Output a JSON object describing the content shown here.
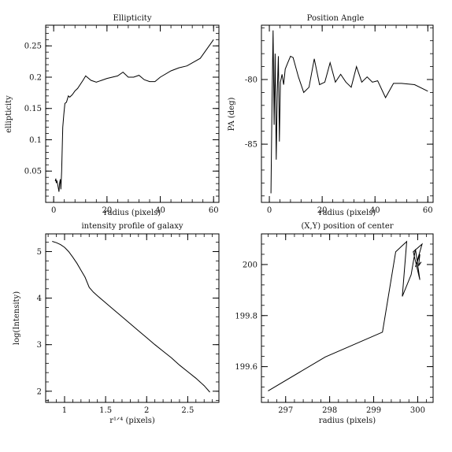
{
  "chart_data": [
    {
      "type": "line",
      "title": "Ellipticity",
      "xlabel": "radius (pixels)",
      "ylabel": "ellipticity",
      "xlim": [
        -3,
        62
      ],
      "ylim": [
        0.0,
        0.283
      ],
      "xticks": [
        0,
        20,
        40,
        60
      ],
      "yticks": [
        0.05,
        0.1,
        0.15,
        0.2,
        0.25
      ],
      "xtick_labels": [
        "0",
        "20",
        "40",
        "60"
      ],
      "ytick_labels": [
        "0.05",
        "0.1",
        "0.15",
        "0.2",
        "0.25"
      ],
      "x": [
        0.6,
        0.8,
        1.0,
        1.2,
        1.5,
        1.8,
        2.0,
        2.2,
        2.5,
        2.7,
        3.0,
        3.4,
        3.8,
        4.2,
        4.8,
        5.5,
        6.0,
        7.0,
        8.0,
        9.0,
        11.0,
        12.0,
        14.0,
        16.0,
        18.0,
        20.0,
        22.0,
        24.0,
        26.0,
        28.0,
        30.0,
        32.0,
        34.0,
        36.0,
        38.0,
        40.0,
        44.0,
        47.0,
        50.0,
        55.0,
        60.0
      ],
      "y": [
        0.034,
        0.038,
        0.031,
        0.035,
        0.029,
        0.022,
        0.017,
        0.03,
        0.037,
        0.021,
        0.05,
        0.12,
        0.14,
        0.158,
        0.16,
        0.17,
        0.168,
        0.172,
        0.178,
        0.182,
        0.195,
        0.202,
        0.195,
        0.192,
        0.195,
        0.198,
        0.2,
        0.202,
        0.208,
        0.2,
        0.2,
        0.203,
        0.196,
        0.193,
        0.193,
        0.2,
        0.21,
        0.215,
        0.218,
        0.23,
        0.26
      ]
    },
    {
      "type": "line",
      "title": "Position Angle",
      "xlabel": "radius (pixels)",
      "ylabel": "PA (deg)",
      "xlim": [
        -3,
        62
      ],
      "ylim": [
        -89.5,
        -75.8
      ],
      "xticks": [
        0,
        20,
        40,
        60
      ],
      "yticks": [
        -80,
        -85
      ],
      "xtick_labels": [
        "0",
        "20",
        "40",
        "60"
      ],
      "ytick_labels": [
        "-80",
        "-85"
      ],
      "x": [
        0.6,
        1.0,
        1.4,
        1.8,
        2.2,
        2.6,
        3.0,
        3.4,
        3.8,
        4.2,
        4.8,
        5.4,
        6.0,
        7.0,
        8.0,
        9.0,
        11.0,
        13.0,
        15.0,
        17.0,
        19.0,
        21.0,
        23.0,
        25.0,
        27.0,
        29.0,
        31.0,
        33.0,
        35.0,
        37.0,
        39.0,
        41.0,
        44.0,
        47.0,
        50.0,
        55.0,
        60.0
      ],
      "y": [
        -88.8,
        -82.0,
        -76.2,
        -83.5,
        -78.0,
        -86.2,
        -81.0,
        -78.2,
        -84.8,
        -80.2,
        -79.6,
        -80.4,
        -79.2,
        -78.7,
        -78.2,
        -78.3,
        -79.8,
        -81.0,
        -80.6,
        -78.4,
        -80.4,
        -80.2,
        -78.7,
        -80.2,
        -79.6,
        -80.2,
        -80.6,
        -79.0,
        -80.2,
        -79.8,
        -80.2,
        -80.1,
        -81.4,
        -80.3,
        -80.3,
        -80.4,
        -80.9
      ]
    },
    {
      "type": "line",
      "title": "intensity profile of galaxy",
      "xlabel": "r¹ᐟ⁴ (pixels)",
      "ylabel": "log(Intensity)",
      "xlim": [
        0.77,
        2.88
      ],
      "ylim": [
        1.76,
        5.38
      ],
      "xticks": [
        1.0,
        1.5,
        2.0,
        2.5
      ],
      "yticks": [
        2,
        3,
        4,
        5
      ],
      "xtick_labels": [
        "1",
        "1.5",
        "2",
        "2.5"
      ],
      "ytick_labels": [
        "2",
        "3",
        "4",
        "5"
      ],
      "x": [
        0.85,
        0.9,
        0.95,
        1.0,
        1.05,
        1.1,
        1.15,
        1.2,
        1.25,
        1.3,
        1.35,
        1.4,
        1.5,
        1.6,
        1.7,
        1.8,
        1.9,
        2.0,
        2.1,
        2.2,
        2.3,
        2.4,
        2.5,
        2.6,
        2.7,
        2.77
      ],
      "y": [
        5.22,
        5.19,
        5.15,
        5.09,
        5.0,
        4.88,
        4.75,
        4.6,
        4.45,
        4.23,
        4.13,
        4.05,
        3.9,
        3.75,
        3.6,
        3.45,
        3.3,
        3.15,
        3.0,
        2.86,
        2.72,
        2.56,
        2.42,
        2.28,
        2.12,
        1.98
      ]
    },
    {
      "type": "line",
      "title": "(X,Y) position of center",
      "xlabel": "radius (pixels)",
      "ylabel": "",
      "xlim": [
        296.45,
        300.35
      ],
      "ylim": [
        199.46,
        200.12
      ],
      "xticks": [
        297,
        298,
        299,
        300
      ],
      "yticks": [
        199.6,
        199.8,
        200
      ],
      "xtick_labels": [
        "297",
        "298",
        "299",
        "300"
      ],
      "ytick_labels": [
        "199.6",
        "199.8",
        "200"
      ],
      "x": [
        296.6,
        297.9,
        299.2,
        299.5,
        299.75,
        299.65,
        299.85,
        299.95,
        300.05,
        299.9,
        300.1,
        299.95,
        300.05,
        300.02,
        300.08,
        300.03,
        300.06
      ],
      "y": [
        199.505,
        199.638,
        199.735,
        200.05,
        200.09,
        199.875,
        199.96,
        200.06,
        199.94,
        200.05,
        200.08,
        199.99,
        200.04,
        199.995,
        200.01,
        200.0,
        200.005
      ]
    }
  ]
}
